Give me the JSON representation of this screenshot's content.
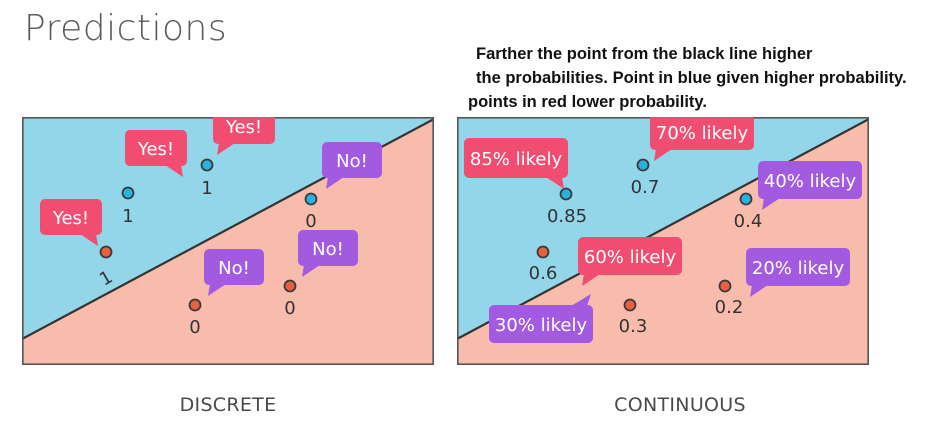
{
  "title": "Predictions",
  "note": {
    "line1": "Farther the point from the black line higher",
    "line2": "the probabilities. Point in blue given higher probability.",
    "line3": "points in red lower probability."
  },
  "colors": {
    "blue_region": "#93d6ea",
    "red_region": "#f8bcad",
    "blue_point": "#2bb1de",
    "red_point": "#e8603f",
    "pink_bubble": "#f04d71",
    "purple_bubble": "#a25be0",
    "boundary": "#333333"
  },
  "panels": [
    {
      "caption": "DISCRETE",
      "points": [
        {
          "color": "red",
          "label": "1",
          "bubble": "Yes!",
          "bubble_color": "pink"
        },
        {
          "color": "blue",
          "label": "1",
          "bubble": "Yes!",
          "bubble_color": "pink"
        },
        {
          "color": "blue",
          "label": "1",
          "bubble": "Yes!",
          "bubble_color": "pink"
        },
        {
          "color": "blue",
          "label": "0",
          "bubble": "No!",
          "bubble_color": "purple"
        },
        {
          "color": "red",
          "label": "0",
          "bubble": "No!",
          "bubble_color": "purple"
        },
        {
          "color": "red",
          "label": "0",
          "bubble": "No!",
          "bubble_color": "purple"
        }
      ]
    },
    {
      "caption": "CONTINUOUS",
      "points": [
        {
          "color": "blue",
          "label": "0.85",
          "bubble": "85% likely",
          "bubble_color": "pink"
        },
        {
          "color": "blue",
          "label": "0.7",
          "bubble": "70% likely",
          "bubble_color": "pink"
        },
        {
          "color": "blue",
          "label": "0.4",
          "bubble": "40% likely",
          "bubble_color": "purple"
        },
        {
          "color": "red",
          "label": "0.6",
          "bubble": "60% likely",
          "bubble_color": "pink"
        },
        {
          "color": "red",
          "label": "0.2",
          "bubble": "20% likely",
          "bubble_color": "purple"
        },
        {
          "color": "red",
          "label": "0.3",
          "bubble": "30% likely",
          "bubble_color": "purple"
        }
      ]
    }
  ]
}
